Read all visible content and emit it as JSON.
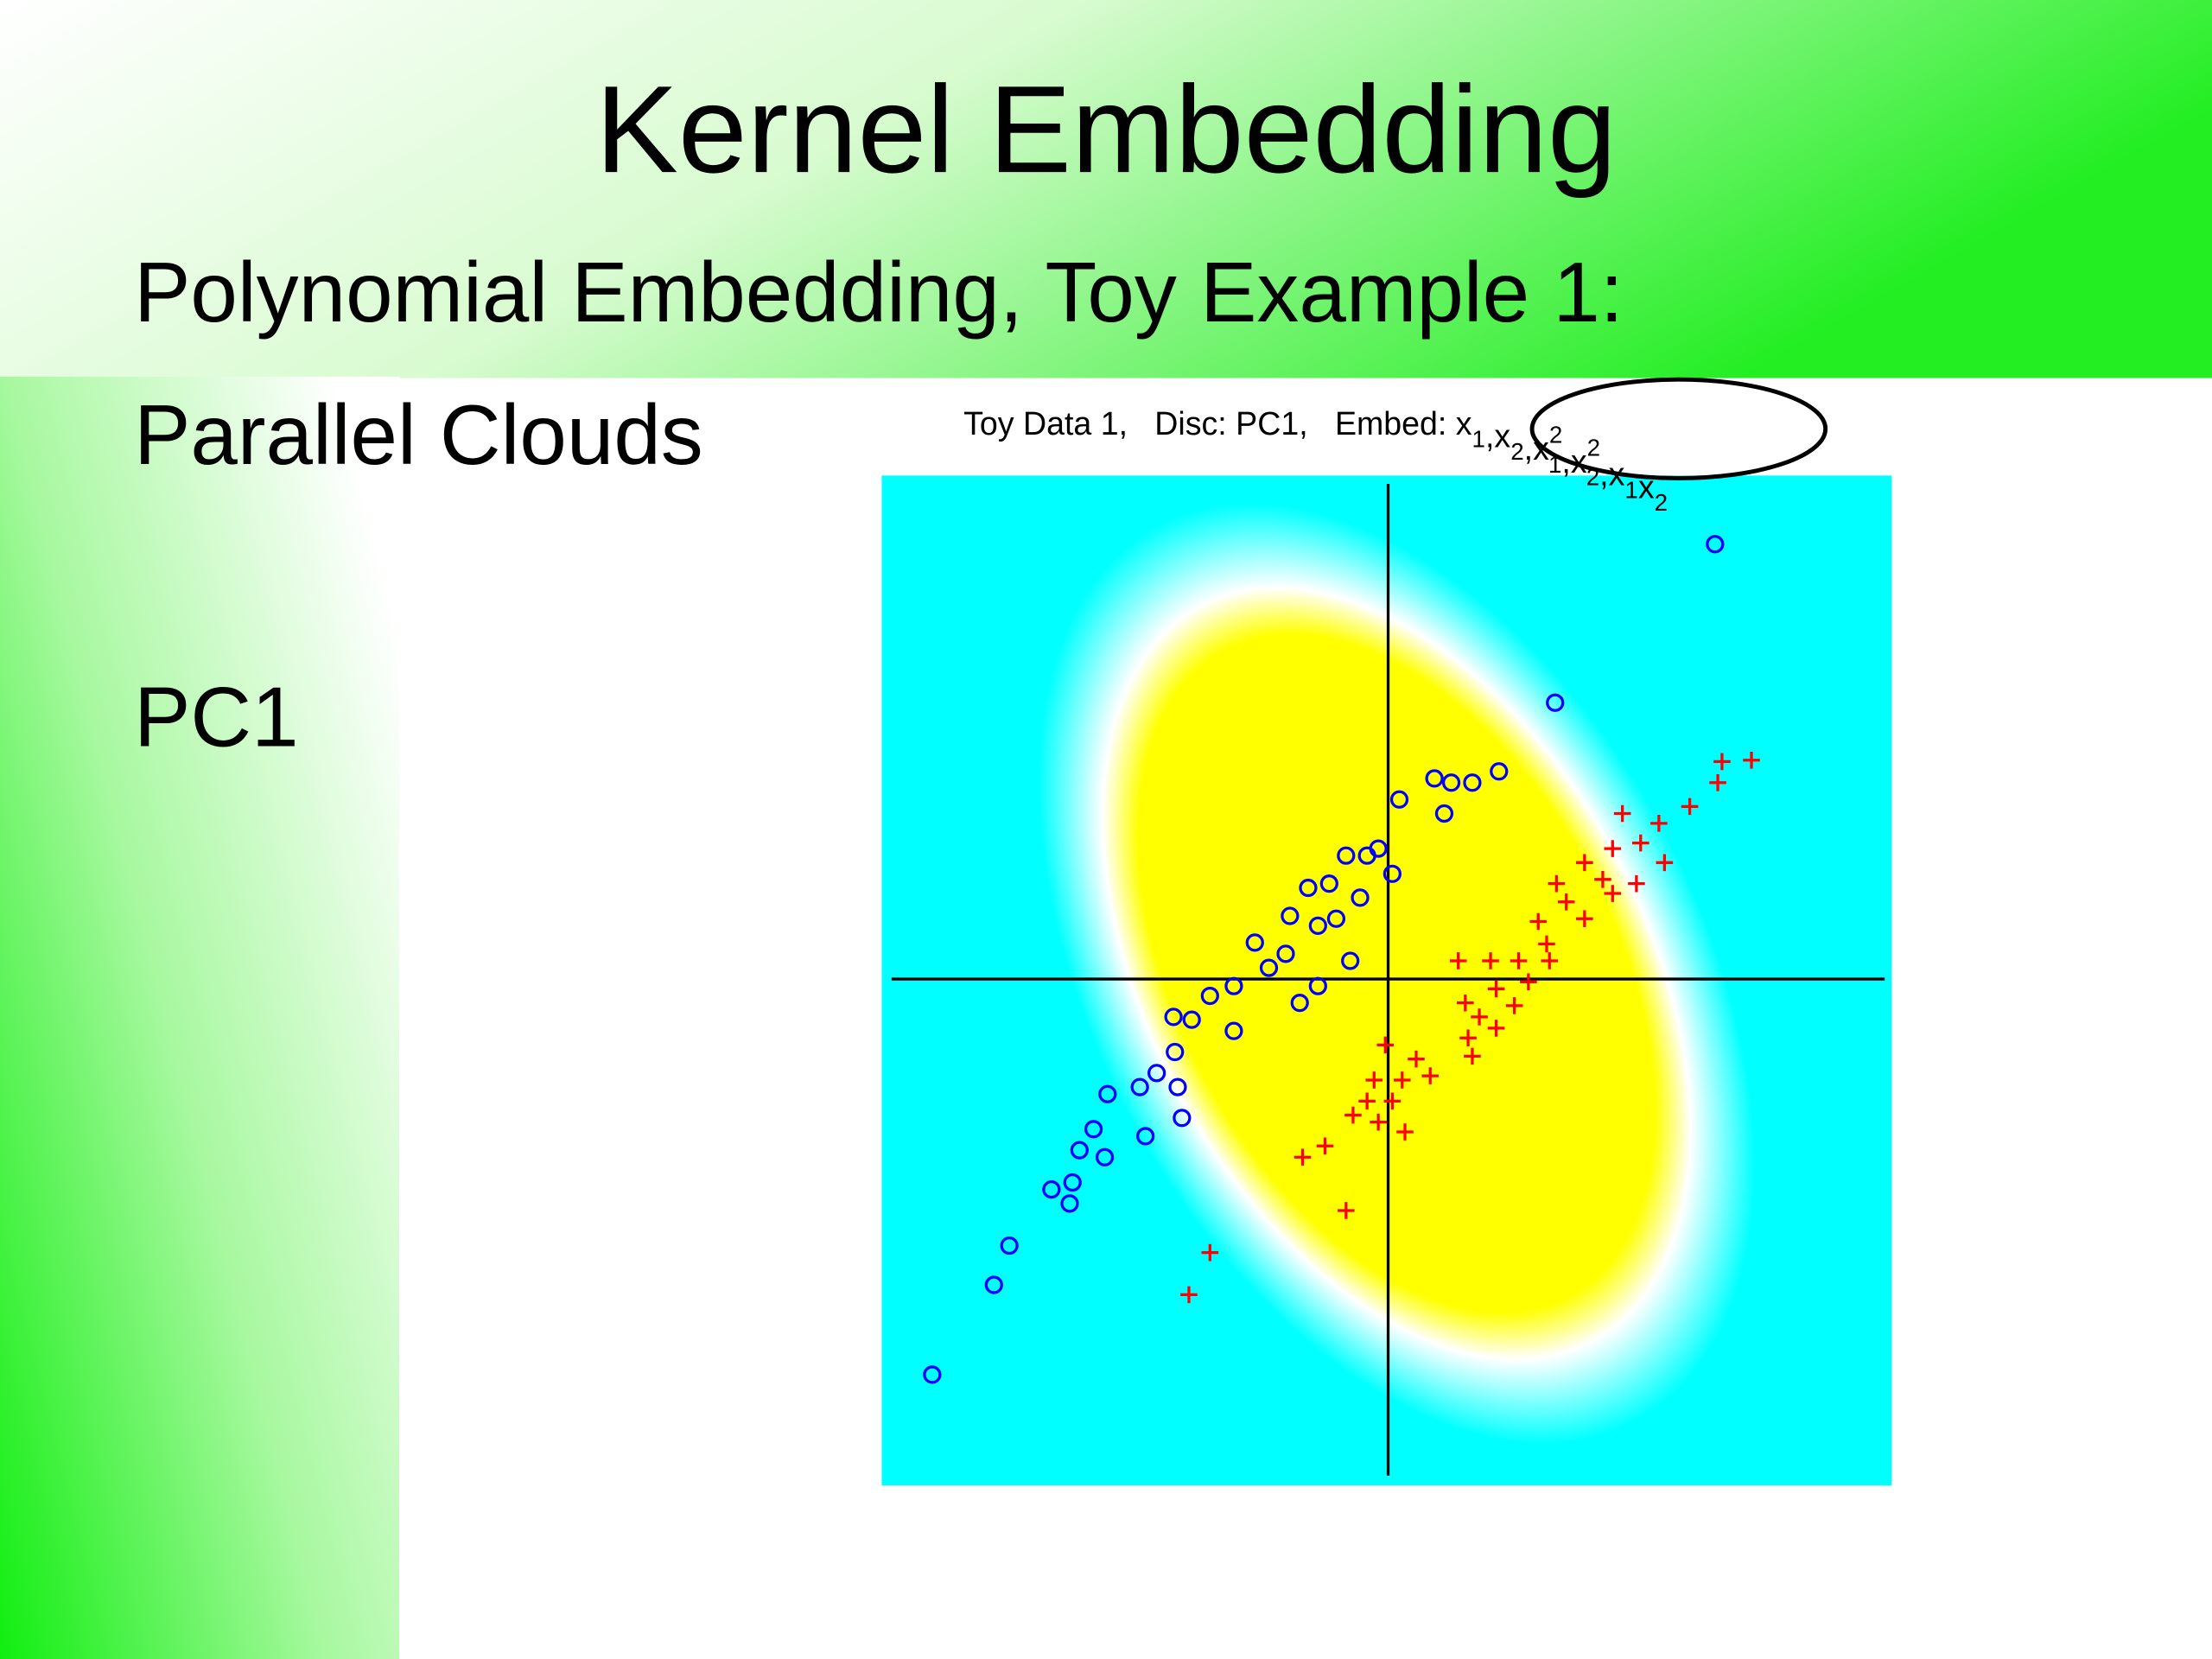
{
  "slide": {
    "title": "Kernel Embedding",
    "lines": [
      "Polynomial Embedding, Toy Example 1:",
      "Parallel Clouds",
      "PC1"
    ]
  },
  "chart_data": {
    "type": "scatter",
    "title": "Toy Data 1,   Disc: PC1,   Embed: ",
    "embed_terms": [
      {
        "text": "x",
        "sub": "1"
      },
      {
        "text": ",x",
        "sub": "2"
      },
      {
        "text": ",x",
        "sub": "1",
        "sup": "2"
      },
      {
        "text": ",x",
        "sub": "2",
        "sup": "2"
      },
      {
        "text": ",x",
        "sub": "1"
      },
      {
        "text": "x",
        "sub": "2"
      }
    ],
    "xlim": [
      -3.6,
      3.6
    ],
    "ylim": [
      -3.6,
      3.6
    ],
    "series": [
      {
        "color": "#0000ff",
        "marker": "circle",
        "x": [
          2.34,
          1.2,
          0.8,
          0.61,
          0.46,
          0.34,
          0.41,
          0.09,
          -0.06,
          -0.14,
          0.04,
          -0.29,
          -0.41,
          -0.56,
          -0.19,
          -0.36,
          -0.69,
          -0.49,
          -0.94,
          -0.72,
          -0.84,
          -0.26,
          -1.09,
          -0.49,
          -0.62,
          -1.26,
          -1.52,
          -1.09,
          -1.39,
          -1.51,
          -1.64,
          -1.49,
          -1.76,
          -1.99,
          -2.09,
          -1.46,
          -1.72,
          -2.19,
          -2.01,
          -2.39,
          -2.24,
          -2.26,
          -2.69,
          -2.8,
          -3.24
        ],
        "y": [
          3.11,
          1.98,
          1.49,
          1.41,
          1.41,
          1.44,
          1.19,
          1.29,
          0.94,
          0.89,
          0.76,
          0.89,
          0.69,
          0.66,
          0.59,
          0.44,
          0.46,
          0.39,
          0.27,
          0.19,
          0.09,
          0.14,
          -0.04,
          -0.04,
          -0.16,
          -0.11,
          -0.26,
          -0.36,
          -0.28,
          -0.51,
          -0.66,
          -0.76,
          -0.76,
          -0.81,
          -1.06,
          -0.98,
          -1.11,
          -1.21,
          -1.26,
          -1.49,
          -1.44,
          -1.59,
          -1.89,
          -2.17,
          -2.81
        ]
      },
      {
        "color": "#ff0000",
        "marker": "plus",
        "x": [
          2.6,
          2.39,
          2.36,
          2.16,
          1.68,
          1.94,
          1.81,
          1.61,
          1.41,
          1.98,
          1.78,
          1.54,
          1.21,
          1.61,
          1.28,
          1.41,
          1.08,
          1.14,
          0.94,
          0.74,
          0.51,
          1.16,
          1.01,
          0.78,
          0.56,
          0.91,
          0.66,
          0.78,
          0.58,
          0.61,
          -0.01,
          0.21,
          0.31,
          0.11,
          -0.09,
          -0.14,
          0.04,
          -0.24,
          -0.06,
          0.13,
          -0.44,
          -0.6,
          -0.29,
          -1.26,
          -1.41
        ],
        "y": [
          1.57,
          1.56,
          1.41,
          1.24,
          1.19,
          1.12,
          0.98,
          0.94,
          0.84,
          0.84,
          0.69,
          0.72,
          0.69,
          0.62,
          0.56,
          0.44,
          0.42,
          0.26,
          0.14,
          0.14,
          0.14,
          0.14,
          -0.01,
          -0.06,
          -0.16,
          -0.18,
          -0.26,
          -0.34,
          -0.41,
          -0.54,
          -0.46,
          -0.56,
          -0.68,
          -0.71,
          -0.71,
          -0.86,
          -0.86,
          -0.96,
          -1.01,
          -1.08,
          -1.18,
          -1.26,
          -1.64,
          -1.94,
          -2.24
        ]
      }
    ]
  }
}
